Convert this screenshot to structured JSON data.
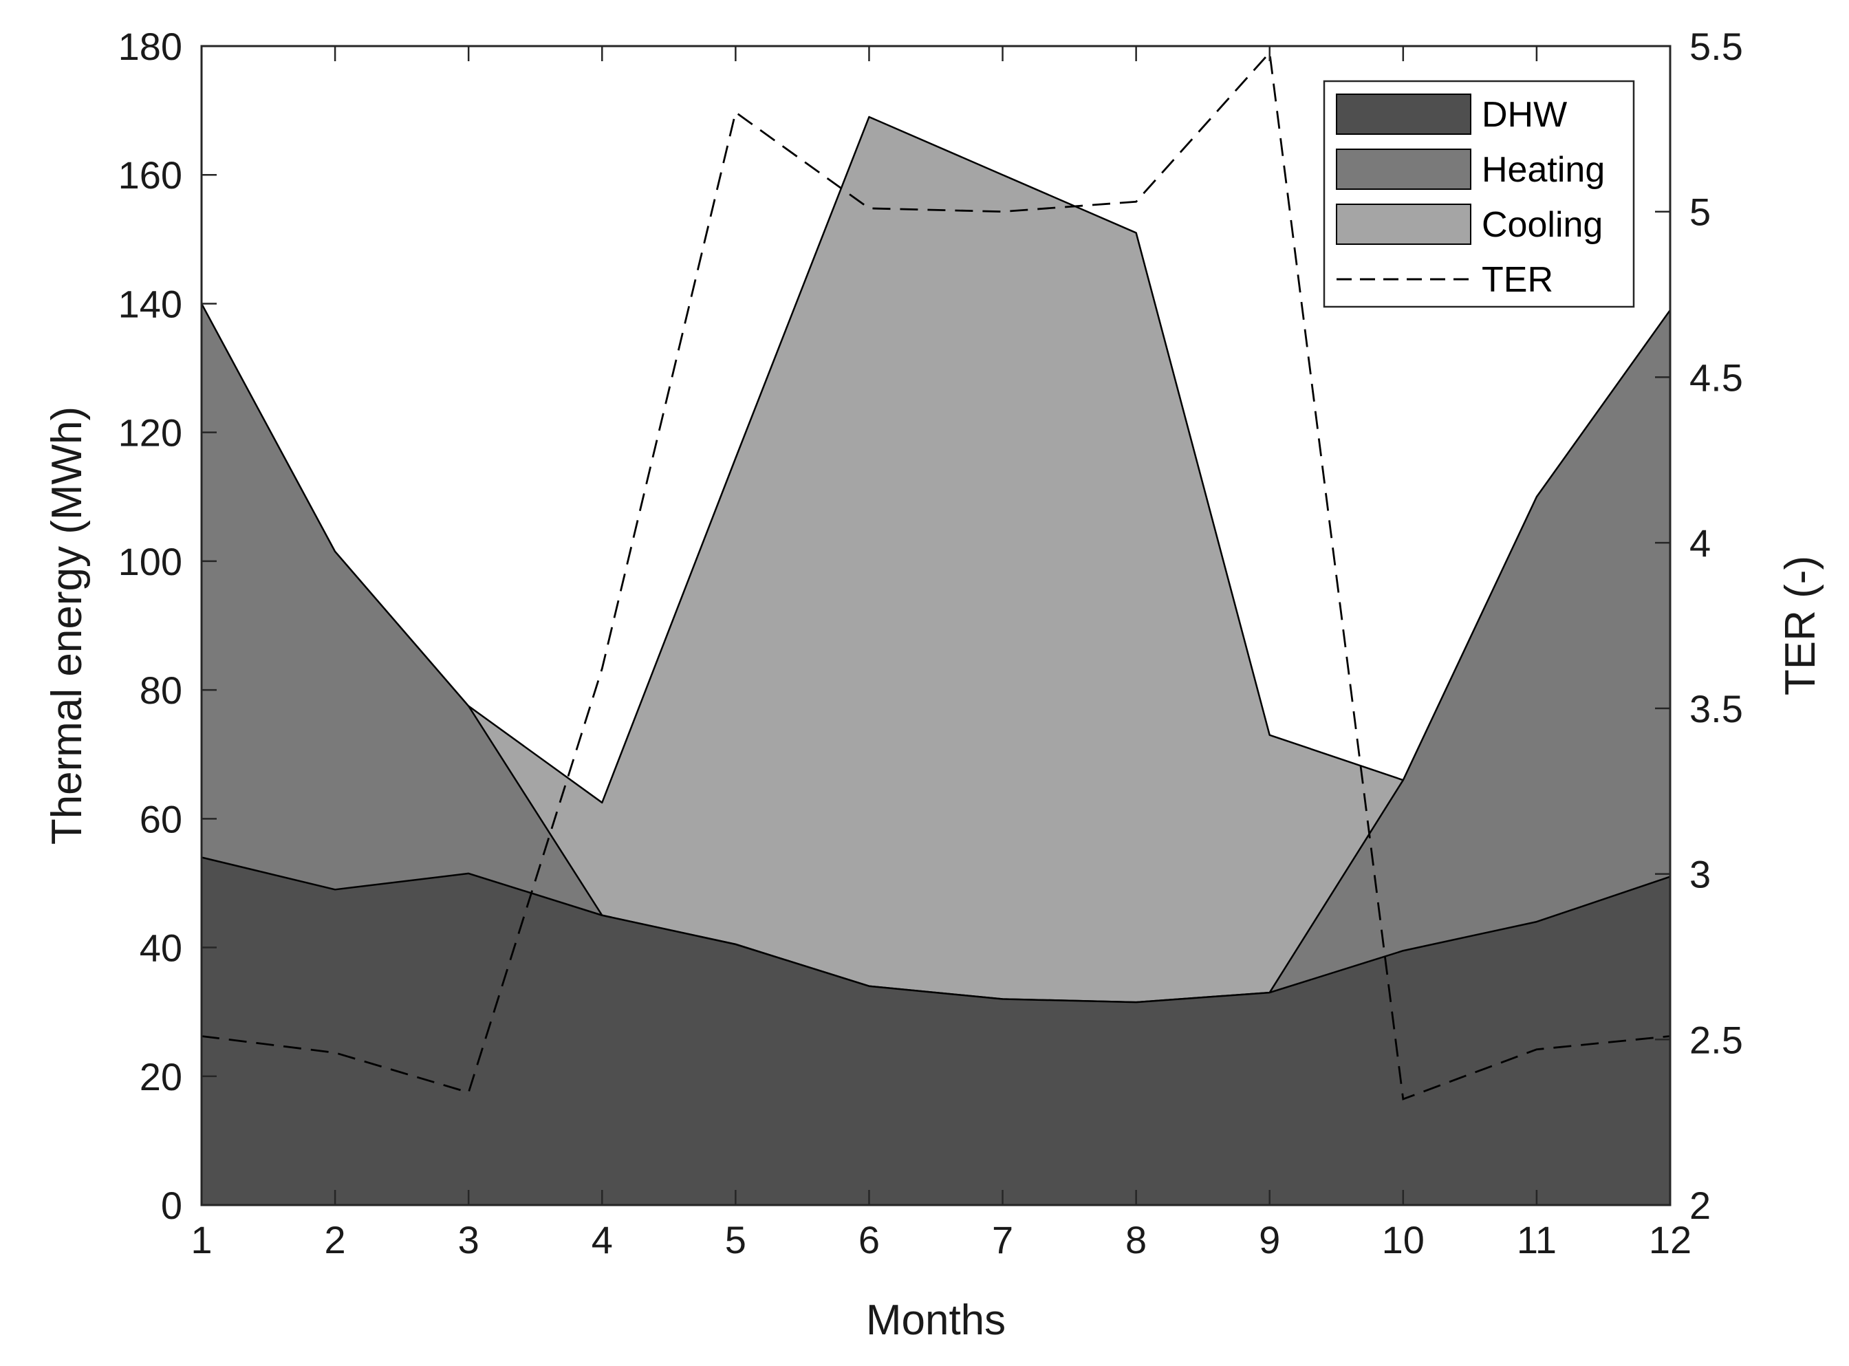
{
  "chart_data": {
    "type": "area",
    "title": "",
    "xlabel": "Months",
    "ylabel_left": "Thermal energy (MWh)",
    "ylabel_right": "TER (-)",
    "x": [
      1,
      2,
      3,
      4,
      5,
      6,
      7,
      8,
      9,
      10,
      11,
      12
    ],
    "xlim": [
      1,
      12
    ],
    "ylim_left": [
      0,
      180
    ],
    "ylim_right": [
      2,
      5.5
    ],
    "xticks": [
      "1",
      "2",
      "3",
      "4",
      "5",
      "6",
      "7",
      "8",
      "9",
      "10",
      "11",
      "12"
    ],
    "yticks_left": [
      "0",
      "20",
      "40",
      "60",
      "80",
      "100",
      "120",
      "140",
      "160",
      "180"
    ],
    "yticks_right": [
      "2",
      "2.5",
      "3",
      "3.5",
      "4",
      "4.5",
      "5",
      "5.5"
    ],
    "grid": false,
    "legend_position": "top-right",
    "series": [
      {
        "name": "DHW",
        "kind": "area",
        "axis": "left",
        "color": "#4f4f4f",
        "values": [
          54,
          49,
          51.5,
          45,
          40.5,
          34,
          32,
          31.5,
          33,
          39.5,
          44,
          51
        ]
      },
      {
        "name": "Heating",
        "kind": "area",
        "axis": "left",
        "color": "#7a7a7a",
        "values": [
          140,
          101.5,
          77.5,
          45,
          40.5,
          34,
          32,
          31.5,
          33,
          66,
          110,
          139
        ]
      },
      {
        "name": "Cooling",
        "kind": "area",
        "axis": "left",
        "color": "#a5a5a5",
        "values": [
          null,
          null,
          77.5,
          62.5,
          116,
          169,
          160,
          151,
          73,
          66,
          null,
          null
        ]
      },
      {
        "name": "TER",
        "kind": "line",
        "axis": "right",
        "style": "dashed",
        "color": "#000000",
        "values": [
          2.51,
          2.46,
          2.34,
          3.62,
          5.3,
          5.01,
          5.0,
          5.03,
          5.48,
          2.32,
          2.47,
          2.51
        ]
      }
    ]
  }
}
